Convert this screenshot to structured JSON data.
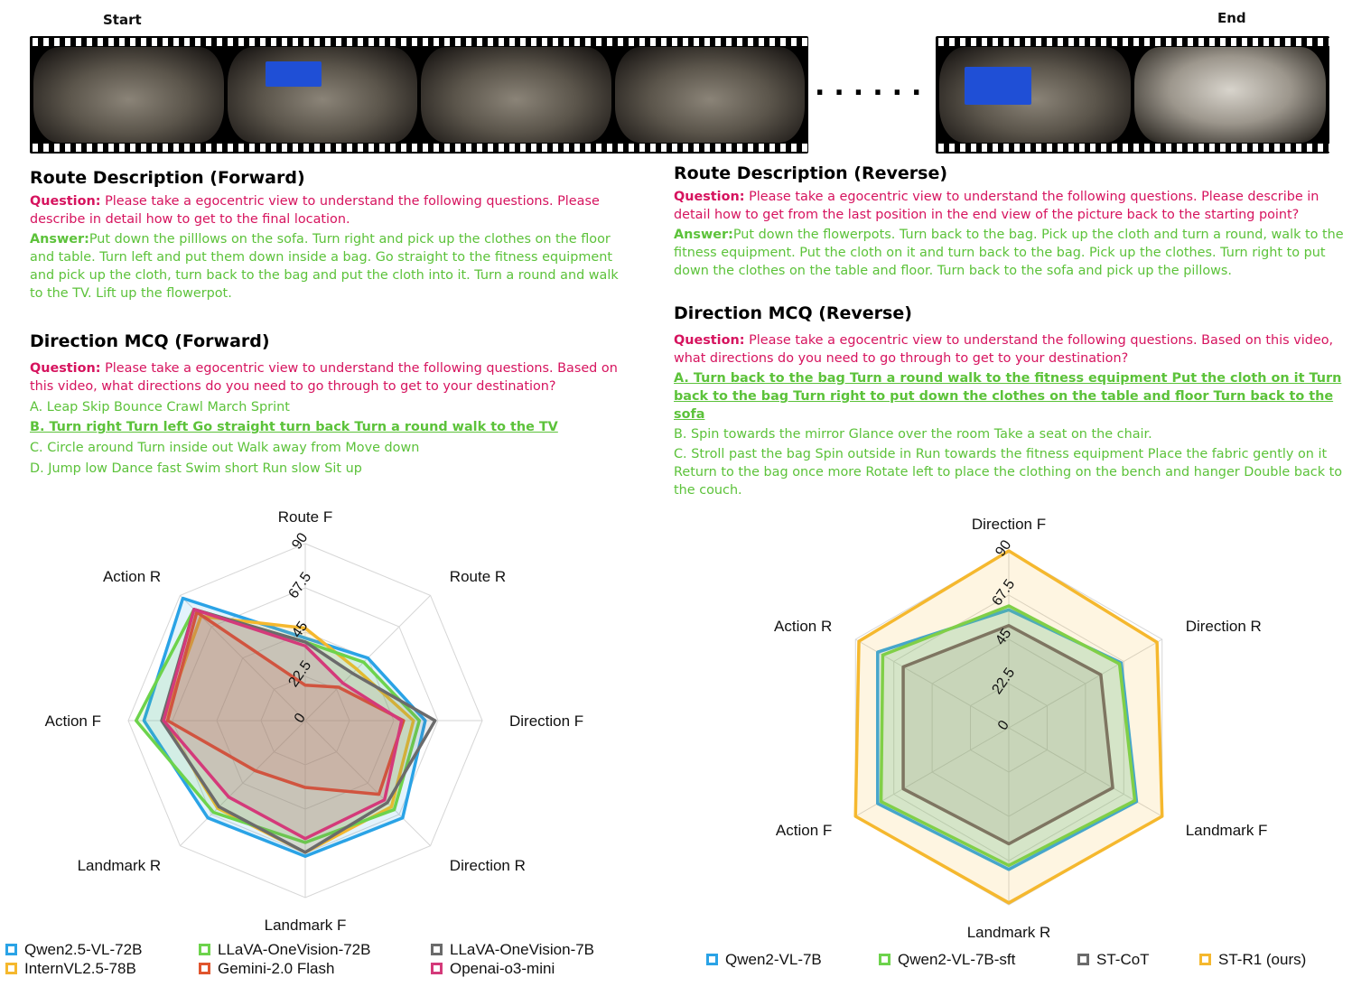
{
  "film": {
    "start_label": "Start",
    "end_label": "End",
    "ellipsis": "......"
  },
  "forward": {
    "route": {
      "title": "Route Description (Forward)",
      "question_label": "Question:",
      "question": " Please take a egocentric view to understand the following questions. Please describe in detail how to get to the final location.",
      "answer_label": "Answer:",
      "answer": "Put down the pilllows on the sofa. Turn right and pick up the clothes on the floor and table. Turn left and put them down inside a bag. Go straight to the fitness equipment and pick up the cloth, turn back to the bag and put the cloth into it. Turn a round and walk to the TV. Lift up the flowerpot."
    },
    "mcq": {
      "title": "Direction MCQ (Forward)",
      "question_label": "Question:",
      "question": " Please take a egocentric view to understand the following questions. Based on this video, what directions do you need to go through to get to your destination?",
      "options": [
        "A. Leap Skip Bounce Crawl March Sprint",
        "B. Turn right Turn left Go straight turn back Turn a round walk to the TV",
        "C. Circle around Turn inside out Walk away from Move down",
        "D. Jump low Dance fast Swim short Run slow Sit up"
      ]
    }
  },
  "reverse": {
    "route": {
      "title": "Route Description (Reverse)",
      "question_label": "Question:",
      "question": " Please take a egocentric view to understand the following questions. Please describe in detail how to get from the last position in the end view of the picture back to the starting point?",
      "answer_label": "Answer:",
      "answer": "Put down the flowerpots. Turn back to the bag. Pick up the cloth and turn a round, walk to the fitness equipment. Put the cloth on it and turn back to the bag. Pick up the clothes. Turn right to put down the clothes on the table and floor. Turn back to the sofa and pick up the pillows."
    },
    "mcq": {
      "title": "Direction MCQ (Reverse)",
      "question_label": "Question:",
      "question": " Please take a egocentric view to understand the following questions. Based on this video, what directions do you need to go through to get to your destination?",
      "options": [
        "A. Turn back to the bag Turn a round walk to the fitness equipment Put the cloth on it Turn back to the bag Turn right to put down the clothes on the table and floor Turn back to the sofa",
        "B. Spin towards the mirror Glance over the room Take a seat on the chair.",
        "C. Stroll past the bag Spin outside in Run towards the fitness equipment Place the fabric gently on it Return to the bag once more Rotate left to place the clothing on the bench and hanger Double back to the couch."
      ]
    }
  },
  "chart_data": [
    {
      "type": "radar",
      "axes": [
        "Route F",
        "Route R",
        "Direction F",
        "Direction R",
        "Landmark F",
        "Landmark R",
        "Action F",
        "Action R"
      ],
      "ticks": [
        "0",
        "22.5",
        "45",
        "67.5",
        "90"
      ],
      "rmax": 90,
      "series": [
        {
          "name": "Qwen2.5-VL-72B",
          "color": "#2aa3e6",
          "values": [
            42,
            45,
            61,
            70,
            69,
            70,
            82,
            88
          ]
        },
        {
          "name": "InternVL2.5-78B",
          "color": "#f5b82e",
          "values": [
            47,
            37,
            55,
            62,
            67,
            63,
            72,
            75
          ]
        },
        {
          "name": "LLaVA-OneVision-72B",
          "color": "#6dd34c",
          "values": [
            40,
            42,
            58,
            64,
            62,
            66,
            86,
            80
          ]
        },
        {
          "name": "Gemini-2.0 Flash",
          "color": "#e0552e",
          "values": [
            18,
            24,
            50,
            53,
            34,
            36,
            70,
            78
          ]
        },
        {
          "name": "LLaVA-OneVision-7B",
          "color": "#6b6b6b",
          "values": [
            40,
            34,
            66,
            59,
            67,
            62,
            73,
            80
          ]
        },
        {
          "name": "Openai-o3-mini",
          "color": "#d43a7a",
          "values": [
            38,
            27,
            49,
            57,
            60,
            55,
            72,
            80
          ]
        }
      ]
    },
    {
      "type": "radar",
      "axes": [
        "Direction F",
        "Direction R",
        "Landmark F",
        "Landmark R",
        "Action F",
        "Action R"
      ],
      "ticks": [
        "0",
        "22.5",
        "45",
        "67.5",
        "90"
      ],
      "rmax": 90,
      "series": [
        {
          "name": "Qwen2-VL-7B",
          "color": "#2aa3e6",
          "values": [
            60,
            66,
            75,
            72,
            77,
            77
          ]
        },
        {
          "name": "Qwen2-VL-7B-sft",
          "color": "#6dd34c",
          "values": [
            62,
            65,
            74,
            70,
            75,
            74
          ]
        },
        {
          "name": "ST-CoT",
          "color": "#6b6b6b",
          "values": [
            52,
            54,
            61,
            59,
            62,
            62
          ]
        },
        {
          "name": "ST-R1 (ours)",
          "color": "#f5b82e",
          "values": [
            90,
            87,
            90,
            89,
            90,
            88
          ]
        }
      ]
    }
  ]
}
